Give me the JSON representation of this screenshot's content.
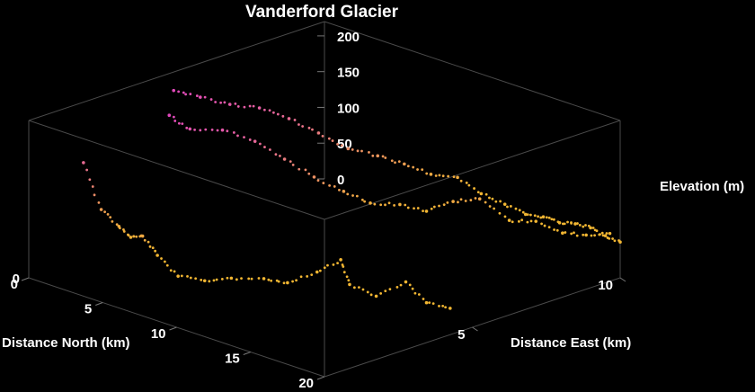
{
  "chart_data": {
    "type": "scatter",
    "dimensions": 3,
    "title": "Vanderford Glacier",
    "xlabel": "Distance North (km)",
    "ylabel": "Distance East (km)",
    "zlabel": "Elevation (m)",
    "xlim": [
      0,
      20
    ],
    "ylim": [
      0,
      10
    ],
    "zlim": [
      0,
      220
    ],
    "xticks": [
      "0",
      "5",
      "10",
      "15",
      "20"
    ],
    "yticks": [
      "5",
      "10"
    ],
    "zticks": [
      "0",
      "50",
      "100",
      "150",
      "200"
    ],
    "colormap": [
      "#f2b632",
      "#e040c8"
    ],
    "box": true,
    "grid": false,
    "series": [
      {
        "x": [
          2.5,
          3.5,
          4.5,
          5.5,
          6.5,
          7.5,
          8.5,
          9.5,
          10.5,
          11.5,
          12.5,
          13.5,
          14.5,
          15.5,
          16.5,
          17.5,
          18.5,
          19.5
        ],
        "y": [
          0.6,
          0.7,
          0.8,
          0.7,
          0.6,
          0.6,
          0.8,
          1.2,
          1.6,
          2.2,
          2.5,
          3.0,
          3.3,
          3.1,
          3.5,
          4.0,
          4.2,
          4.5
        ],
        "z": [
          170,
          110,
          92,
          85,
          95,
          75,
          50,
          45,
          50,
          48,
          45,
          60,
          80,
          55,
          40,
          60,
          35,
          30
        ]
      },
      {
        "x": [
          3.5,
          4.5,
          5.5,
          6.5,
          7.5,
          8.5,
          9.5,
          10.5,
          11.5,
          12.5,
          13.5,
          14.5,
          15.5,
          16.5,
          17.5,
          18.5,
          19.5
        ],
        "y": [
          3.0,
          3.2,
          3.8,
          4.4,
          4.9,
          5.4,
          5.9,
          6.3,
          6.8,
          7.2,
          7.6,
          8.0,
          8.5,
          8.9,
          9.3,
          9.6,
          9.9
        ],
        "z": [
          210,
          195,
          192,
          175,
          150,
          125,
          105,
          90,
          88,
          80,
          95,
          100,
          70,
          70,
          55,
          55,
          60
        ]
      },
      {
        "x": [
          1.0,
          2.0,
          3.0,
          4.0,
          5.0,
          6.0,
          7.0,
          8.0,
          9.0,
          10.0,
          11.0,
          12.0,
          13.0,
          14.0,
          15.0,
          16.0,
          17.0,
          18.0,
          19.0,
          20.0
        ],
        "y": [
          4.4,
          4.8,
          5.3,
          5.8,
          6.3,
          6.8,
          7.3,
          7.8,
          8.2,
          8.6,
          9.0,
          9.3,
          9.6,
          9.8,
          9.9,
          9.95,
          9.98,
          10.0,
          10.0,
          10.0
        ],
        "z": [
          208,
          200,
          190,
          185,
          170,
          150,
          128,
          118,
          108,
          95,
          92,
          72,
          60,
          50,
          52,
          50,
          55,
          56,
          52,
          50
        ]
      }
    ]
  }
}
